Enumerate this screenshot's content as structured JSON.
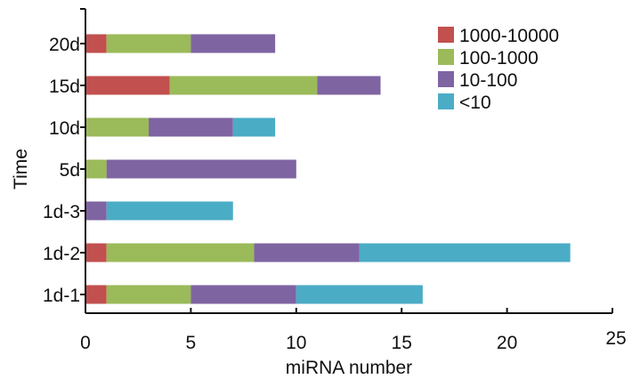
{
  "chart_data": {
    "type": "bar",
    "orientation": "horizontal",
    "stacked": true,
    "xlabel": "miRNA number",
    "ylabel": "Time",
    "xlim": [
      0,
      25
    ],
    "x_ticks": [
      0,
      5,
      10,
      15,
      20,
      25
    ],
    "categories": [
      "1d-1",
      "1d-2",
      "1d-3",
      "5d",
      "10d",
      "15d",
      "20d"
    ],
    "series": [
      {
        "name": "1000-10000",
        "color": "#c1504f",
        "values": [
          1,
          1,
          0,
          0,
          0,
          4,
          1
        ]
      },
      {
        "name": "100-1000",
        "color": "#9bba59",
        "values": [
          4,
          7,
          0,
          1,
          3,
          7,
          4
        ]
      },
      {
        "name": "10-100",
        "color": "#7f64a2",
        "values": [
          5,
          5,
          1,
          9,
          4,
          3,
          4
        ]
      },
      {
        "name": "<10",
        "color": "#4bacc6",
        "values": [
          6,
          10,
          6,
          0,
          2,
          0,
          0
        ]
      }
    ],
    "legend_position": "top-right",
    "grid": false
  }
}
